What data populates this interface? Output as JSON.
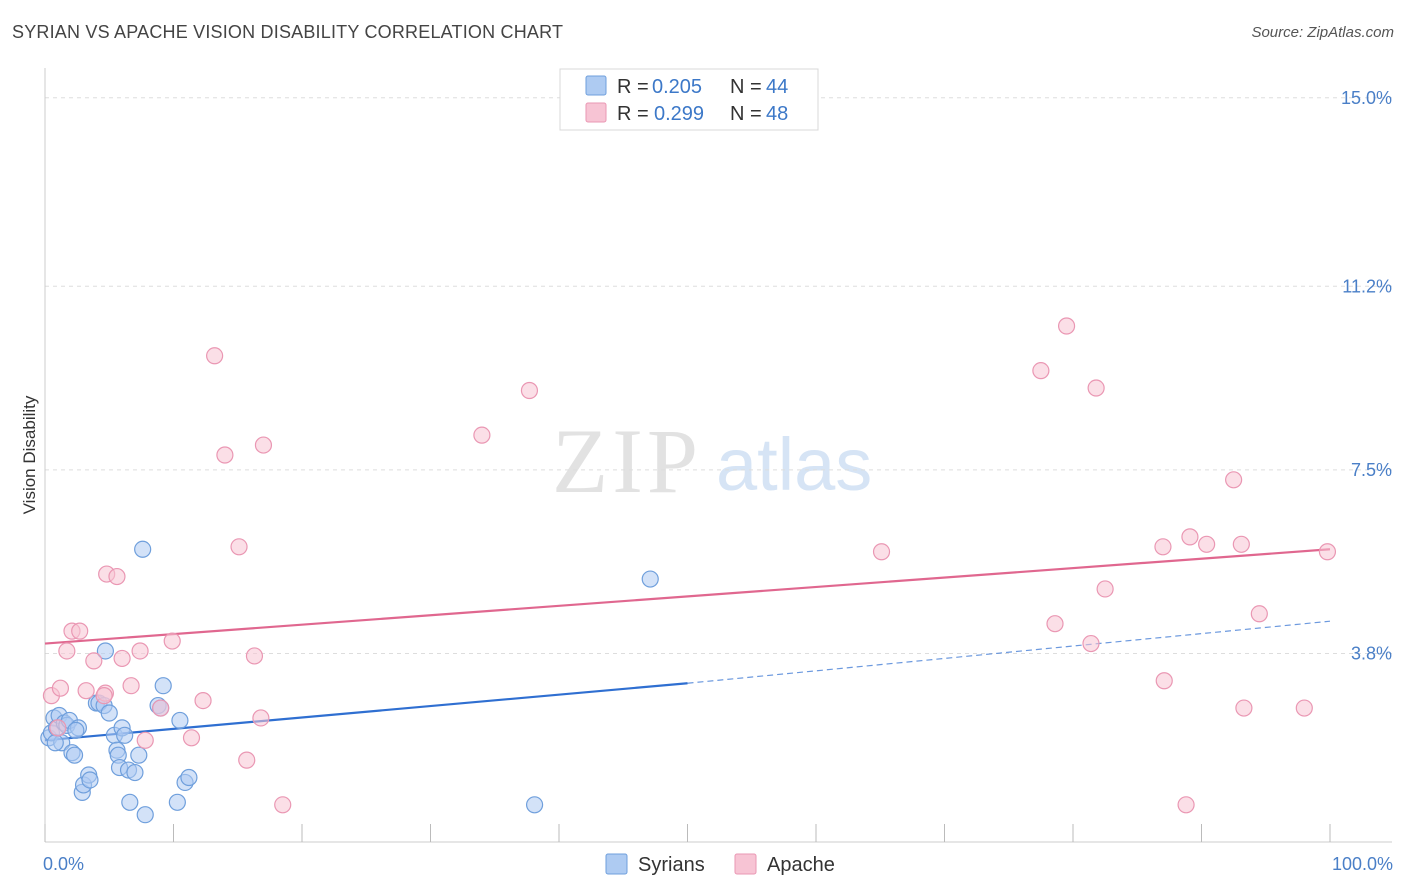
{
  "header": {
    "title": "SYRIAN VS APACHE VISION DISABILITY CORRELATION CHART",
    "source": "Source: ZipAtlas.com"
  },
  "watermark": {
    "zip": "ZIP",
    "atlas": "atlas"
  },
  "colors": {
    "syrians_fill": "#aecbf2",
    "syrians_stroke": "#6f9fdc",
    "syrians_line": "#2f6fd1",
    "apache_fill": "#f7c4d4",
    "apache_stroke": "#ea97b3",
    "apache_line": "#e0678f",
    "tick_label": "#4a7fc7",
    "grid": "#dddddd"
  },
  "legend_top": {
    "rows": [
      {
        "series": "Syrians",
        "r_label": "R =",
        "r_value": "0.205",
        "n_label": "N =",
        "n_value": "44"
      },
      {
        "series": "Apache",
        "r_label": "R =",
        "r_value": "0.299",
        "n_label": "N =",
        "n_value": "48"
      }
    ]
  },
  "chart_data": {
    "type": "scatter",
    "title": "SYRIAN VS APACHE VISION DISABILITY CORRELATION CHART",
    "xlabel": "",
    "ylabel": "Vision Disability",
    "xlim": [
      0,
      100
    ],
    "ylim": [
      0,
      15.6
    ],
    "y_ticks": [
      {
        "value": 15.0,
        "label": "15.0%"
      },
      {
        "value": 11.2,
        "label": "11.2%"
      },
      {
        "value": 7.5,
        "label": "7.5%"
      },
      {
        "value": 3.8,
        "label": "3.8%"
      }
    ],
    "x_tick_labels": [
      {
        "value": 0,
        "label": "0.0%"
      },
      {
        "value": 100,
        "label": "100.0%"
      }
    ],
    "grid": true,
    "legend": [
      "Syrians",
      "Apache"
    ],
    "series": [
      {
        "name": "Syrians",
        "r": 0.205,
        "n": 44,
        "trend": {
          "x0": 0,
          "y0": 2.05,
          "x1": 50,
          "y1": 3.2,
          "dashed_to_x": 100,
          "dashed_to_y": 4.45
        },
        "points": [
          [
            0.3,
            2.1
          ],
          [
            0.5,
            2.2
          ],
          [
            0.7,
            2.5
          ],
          [
            0.9,
            2.3
          ],
          [
            1.1,
            2.55
          ],
          [
            1.3,
            2.0
          ],
          [
            1.5,
            2.4
          ],
          [
            1.7,
            2.35
          ],
          [
            1.9,
            2.45
          ],
          [
            2.1,
            1.8
          ],
          [
            2.3,
            1.75
          ],
          [
            2.6,
            2.3
          ],
          [
            2.9,
            1.0
          ],
          [
            3.0,
            1.15
          ],
          [
            3.4,
            1.35
          ],
          [
            3.5,
            1.25
          ],
          [
            4.0,
            2.8
          ],
          [
            4.2,
            2.8
          ],
          [
            4.6,
            2.75
          ],
          [
            4.7,
            3.85
          ],
          [
            5.0,
            2.6
          ],
          [
            5.4,
            2.15
          ],
          [
            5.6,
            1.85
          ],
          [
            5.7,
            1.75
          ],
          [
            5.8,
            1.5
          ],
          [
            6.0,
            2.3
          ],
          [
            6.2,
            2.15
          ],
          [
            6.5,
            1.45
          ],
          [
            6.6,
            0.8
          ],
          [
            7.0,
            1.4
          ],
          [
            7.3,
            1.75
          ],
          [
            7.6,
            5.9
          ],
          [
            7.8,
            0.55
          ],
          [
            8.8,
            2.75
          ],
          [
            9.0,
            2.7
          ],
          [
            9.2,
            3.15
          ],
          [
            10.3,
            0.8
          ],
          [
            10.5,
            2.45
          ],
          [
            10.9,
            1.2
          ],
          [
            11.2,
            1.3
          ],
          [
            38.1,
            0.75
          ],
          [
            47.1,
            5.3
          ],
          [
            0.8,
            2.0
          ],
          [
            2.4,
            2.25
          ]
        ]
      },
      {
        "name": "Apache",
        "r": 0.299,
        "n": 48,
        "trend": {
          "x0": 0,
          "y0": 4.0,
          "x1": 100,
          "y1": 5.9
        },
        "points": [
          [
            0.5,
            2.95
          ],
          [
            1.0,
            2.3
          ],
          [
            1.2,
            3.1
          ],
          [
            1.7,
            3.85
          ],
          [
            2.1,
            4.25
          ],
          [
            2.7,
            4.25
          ],
          [
            3.2,
            3.05
          ],
          [
            3.8,
            3.65
          ],
          [
            4.7,
            3.0
          ],
          [
            4.6,
            2.95
          ],
          [
            4.8,
            5.4
          ],
          [
            5.6,
            5.35
          ],
          [
            6.0,
            3.7
          ],
          [
            6.7,
            3.15
          ],
          [
            7.4,
            3.85
          ],
          [
            7.8,
            2.05
          ],
          [
            9.0,
            2.7
          ],
          [
            9.9,
            4.05
          ],
          [
            11.4,
            2.1
          ],
          [
            12.3,
            2.85
          ],
          [
            13.2,
            9.8
          ],
          [
            14.0,
            7.8
          ],
          [
            15.1,
            5.95
          ],
          [
            15.7,
            1.65
          ],
          [
            16.3,
            3.75
          ],
          [
            17.0,
            8.0
          ],
          [
            16.8,
            2.5
          ],
          [
            18.5,
            0.75
          ],
          [
            34.0,
            8.2
          ],
          [
            37.7,
            9.1
          ],
          [
            65.1,
            5.85
          ],
          [
            77.5,
            9.5
          ],
          [
            78.6,
            4.4
          ],
          [
            79.5,
            10.4
          ],
          [
            81.4,
            4.0
          ],
          [
            81.8,
            9.15
          ],
          [
            82.5,
            5.1
          ],
          [
            87.0,
            5.95
          ],
          [
            87.1,
            3.25
          ],
          [
            88.8,
            0.75
          ],
          [
            89.1,
            6.15
          ],
          [
            90.4,
            6.0
          ],
          [
            92.5,
            7.3
          ],
          [
            93.1,
            6.0
          ],
          [
            93.3,
            2.7
          ],
          [
            94.5,
            4.6
          ],
          [
            98.0,
            2.7
          ],
          [
            99.8,
            5.85
          ]
        ]
      }
    ]
  }
}
